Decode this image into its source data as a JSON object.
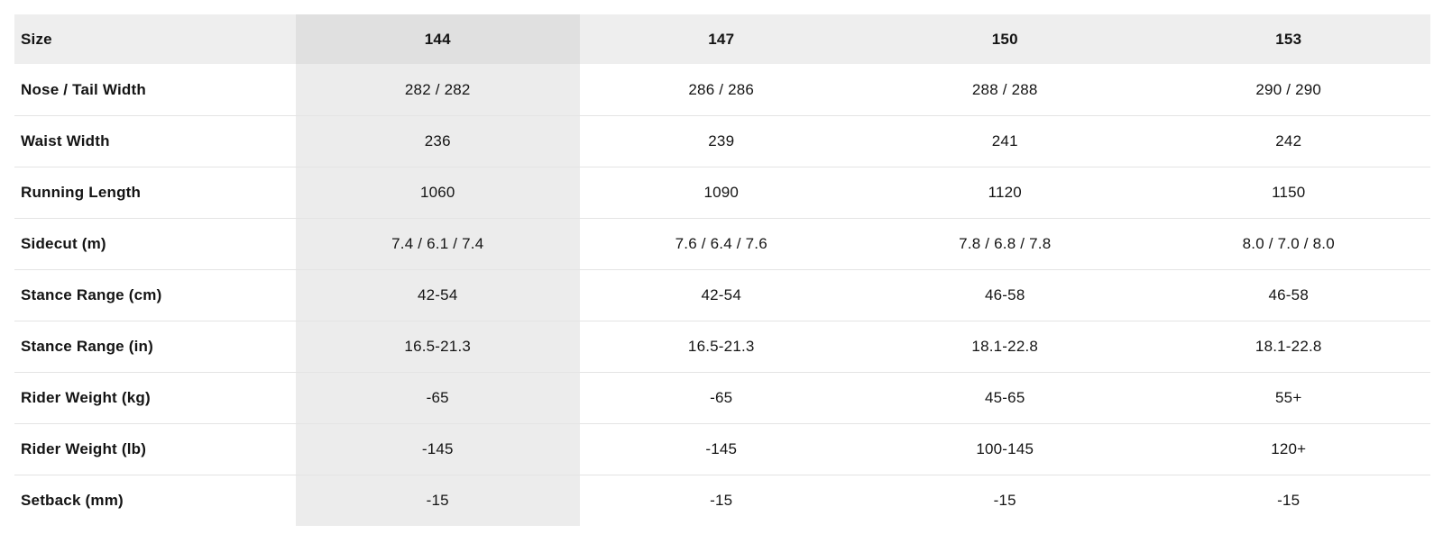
{
  "specs_table": {
    "header": {
      "label": "Size",
      "sizes": [
        "144",
        "147",
        "150",
        "153"
      ],
      "highlighted_size": "144",
      "highlighted_column_index": 0
    },
    "rows": [
      {
        "label": "Nose / Tail Width",
        "values": [
          "282 / 282",
          "286 / 286",
          "288 / 288",
          "290 / 290"
        ]
      },
      {
        "label": "Waist Width",
        "values": [
          "236",
          "239",
          "241",
          "242"
        ]
      },
      {
        "label": "Running Length",
        "values": [
          "1060",
          "1090",
          "1120",
          "1150"
        ]
      },
      {
        "label": "Sidecut (m)",
        "values": [
          "7.4 / 6.1 / 7.4",
          "7.6 / 6.4 / 7.6",
          "7.8 / 6.8 / 7.8",
          "8.0 / 7.0 / 8.0"
        ]
      },
      {
        "label": "Stance Range (cm)",
        "values": [
          "42-54",
          "42-54",
          "46-58",
          "46-58"
        ]
      },
      {
        "label": "Stance Range (in)",
        "values": [
          "16.5-21.3",
          "16.5-21.3",
          "18.1-22.8",
          "18.1-22.8"
        ]
      },
      {
        "label": "Rider Weight (kg)",
        "values": [
          "-65",
          "-65",
          "45-65",
          "55+"
        ]
      },
      {
        "label": "Rider Weight (lb)",
        "values": [
          "-145",
          "-145",
          "100-145",
          "120+"
        ]
      },
      {
        "label": "Setback (mm)",
        "values": [
          "-15",
          "-15",
          "-15",
          "-15"
        ]
      }
    ],
    "colors": {
      "header_bg": "#eeeeee",
      "header_highlight_bg": "#e0e0e0",
      "column_highlight_bg": "#ececec",
      "row_divider": "#e4e4e4",
      "text": "#141414"
    }
  }
}
